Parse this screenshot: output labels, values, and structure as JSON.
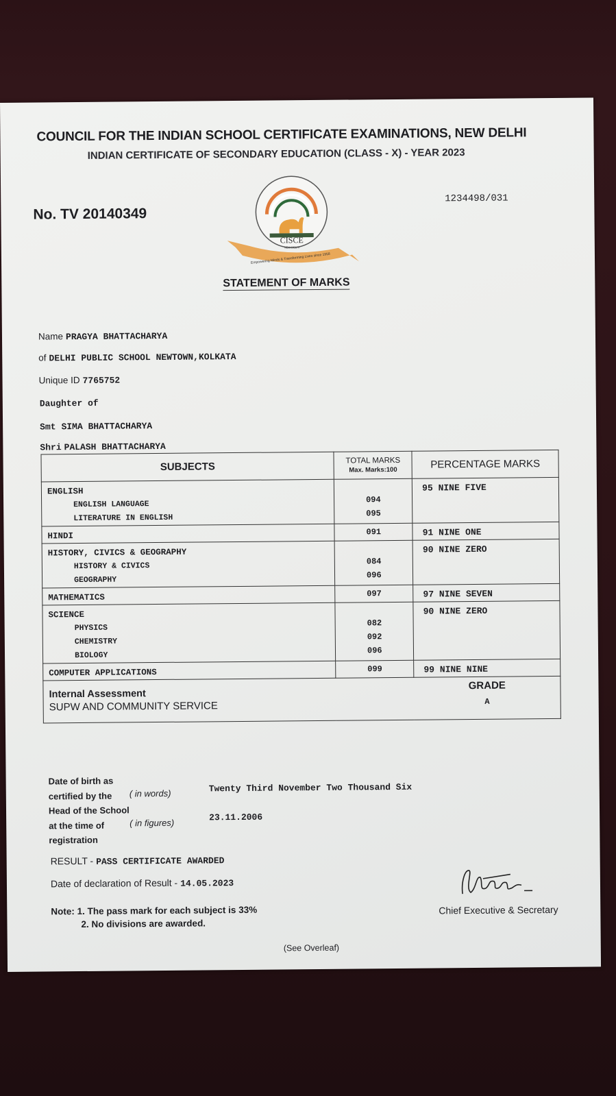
{
  "header": {
    "council": "COUNCIL FOR THE INDIAN SCHOOL CERTIFICATE EXAMINATIONS, NEW DELHI",
    "exam": "INDIAN CERTIFICATE OF SECONDARY EDUCATION (CLASS - X) - YEAR 2023",
    "certificate_no": "No. TV 20140349",
    "ref_no": "1234498/031",
    "logo_text": "CISCE",
    "logo_subtext": "NEW DELHI",
    "logo_ring": "COUNCIL FOR THE INDIAN SCHOOL CERTIFICATE EXAMINATIONS",
    "logo_ribbon": "Empowering Minds & Transforming Lives since 1958",
    "title": "STATEMENT OF MARKS"
  },
  "student": {
    "name_label": "Name",
    "name": "PRAGYA BHATTACHARYA",
    "school_label": "of",
    "school": "DELHI PUBLIC SCHOOL NEWTOWN,KOLKATA",
    "uid_label": "Unique ID",
    "uid": "7765752",
    "relation": "Daughter of",
    "mother_label": "Smt",
    "mother": "SIMA BHATTACHARYA",
    "father_label": "Shri",
    "father": "PALASH BHATTACHARYA"
  },
  "table": {
    "col_subjects": "SUBJECTS",
    "col_total": "TOTAL MARKS",
    "col_total_sub": "Max. Marks:100",
    "col_percentage": "PERCENTAGE MARKS",
    "rows": [
      {
        "subject": "ENGLISH",
        "children": [
          "ENGLISH LANGUAGE",
          "LITERATURE IN ENGLISH"
        ],
        "marks": [
          "094",
          "095"
        ],
        "percentage": "95 NINE FIVE"
      },
      {
        "subject": "HINDI",
        "children": [],
        "marks": [
          "091"
        ],
        "percentage": "91 NINE ONE"
      },
      {
        "subject": "HISTORY, CIVICS & GEOGRAPHY",
        "children": [
          "HISTORY & CIVICS",
          "GEOGRAPHY"
        ],
        "marks": [
          "084",
          "096"
        ],
        "percentage": "90 NINE ZERO"
      },
      {
        "subject": "MATHEMATICS",
        "children": [],
        "marks": [
          "097"
        ],
        "percentage": "97 NINE SEVEN"
      },
      {
        "subject": "SCIENCE",
        "children": [
          "PHYSICS",
          "CHEMISTRY",
          "BIOLOGY"
        ],
        "marks": [
          "082",
          "092",
          "096"
        ],
        "percentage": "90 NINE ZERO"
      },
      {
        "subject": "COMPUTER APPLICATIONS",
        "children": [],
        "marks": [
          "099"
        ],
        "percentage": "99 NINE NINE"
      }
    ],
    "internal_label": "Internal Assessment",
    "internal_subject": "SUPW AND COMMUNITY SERVICE",
    "grade_label": "GRADE",
    "grade": "A"
  },
  "dob": {
    "l1": "Date of birth as",
    "l2": "certified by the",
    "l3": "Head of the School",
    "l4": "at the time of",
    "l5": "registration",
    "words_label": "( in words)",
    "figures_label": "( in figures)",
    "words": "Twenty Third November Two Thousand Six",
    "figures": "23.11.2006"
  },
  "result": {
    "label": "RESULT -",
    "value": "PASS CERTIFICATE AWARDED",
    "decl_label": "Date of declaration of Result -",
    "decl_date": "14.05.2023"
  },
  "notes": {
    "label": "Note:",
    "n1": "1. The pass mark for each subject is 33%",
    "n2": "2. No divisions are awarded."
  },
  "signatory": "Chief Executive & Secretary",
  "footer": "(See Overleaf)"
}
